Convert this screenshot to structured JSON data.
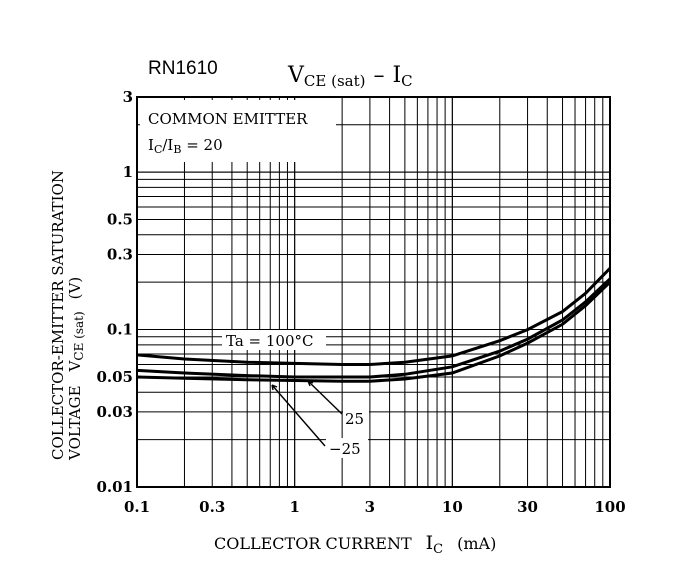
{
  "chart_data": {
    "type": "line",
    "part_number": "RN1610",
    "title": {
      "main": "V",
      "sub1": "CE (sat)",
      "dash": "–",
      "main2": "I",
      "sub2": "C"
    },
    "conditions": {
      "line1": "COMMON EMITTER",
      "line2": {
        "i1": "I",
        "s1": "C",
        "slash": "/I",
        "s2": "B",
        "rest": " = 20"
      }
    },
    "xlabel": {
      "main": "COLLECTOR CURRENT",
      "sym": "I",
      "sub": "C",
      "unit": "(mA)"
    },
    "ylabel": {
      "line1": "COLLECTOR-EMITTER SATURATION",
      "line2_pre": "VOLTAGE",
      "sym": "V",
      "sub": "CE (sat)",
      "unit": "(V)"
    },
    "x_scale": "log",
    "y_scale": "log",
    "xlim": [
      0.1,
      100
    ],
    "ylim": [
      0.01,
      3
    ],
    "x_ticks": [
      {
        "value": 0.1,
        "label": "0.1"
      },
      {
        "value": 0.3,
        "label": "0.3"
      },
      {
        "value": 1,
        "label": "1"
      },
      {
        "value": 3,
        "label": "3"
      },
      {
        "value": 10,
        "label": "10"
      },
      {
        "value": 30,
        "label": "30"
      },
      {
        "value": 100,
        "label": "100"
      }
    ],
    "y_ticks": [
      {
        "value": 0.01,
        "label": "0.01"
      },
      {
        "value": 0.03,
        "label": "0.03"
      },
      {
        "value": 0.05,
        "label": "0.05"
      },
      {
        "value": 0.1,
        "label": "0.1"
      },
      {
        "value": 0.3,
        "label": "0.3"
      },
      {
        "value": 0.5,
        "label": "0.5"
      },
      {
        "value": 1,
        "label": "1"
      },
      {
        "value": 3,
        "label": "3"
      }
    ],
    "series": [
      {
        "name": "Ta = 100°C",
        "label": "Ta = 100°C",
        "points": [
          [
            0.1,
            0.069
          ],
          [
            0.2,
            0.065
          ],
          [
            0.5,
            0.062
          ],
          [
            1,
            0.061
          ],
          [
            2,
            0.06
          ],
          [
            3,
            0.06
          ],
          [
            5,
            0.062
          ],
          [
            10,
            0.068
          ],
          [
            20,
            0.085
          ],
          [
            30,
            0.1
          ],
          [
            50,
            0.13
          ],
          [
            70,
            0.17
          ],
          [
            100,
            0.245
          ]
        ]
      },
      {
        "name": "25",
        "label": "25",
        "points": [
          [
            0.1,
            0.055
          ],
          [
            0.2,
            0.053
          ],
          [
            0.5,
            0.051
          ],
          [
            1,
            0.05
          ],
          [
            2,
            0.05
          ],
          [
            3,
            0.05
          ],
          [
            5,
            0.052
          ],
          [
            10,
            0.058
          ],
          [
            20,
            0.073
          ],
          [
            30,
            0.087
          ],
          [
            50,
            0.115
          ],
          [
            70,
            0.15
          ],
          [
            100,
            0.21
          ]
        ]
      },
      {
        "name": "-25",
        "label": "−25",
        "points": [
          [
            0.1,
            0.05
          ],
          [
            0.2,
            0.049
          ],
          [
            0.5,
            0.048
          ],
          [
            1,
            0.0475
          ],
          [
            2,
            0.047
          ],
          [
            3,
            0.047
          ],
          [
            5,
            0.0485
          ],
          [
            10,
            0.053
          ],
          [
            20,
            0.068
          ],
          [
            30,
            0.082
          ],
          [
            50,
            0.108
          ],
          [
            70,
            0.142
          ],
          [
            100,
            0.2
          ]
        ]
      }
    ]
  }
}
